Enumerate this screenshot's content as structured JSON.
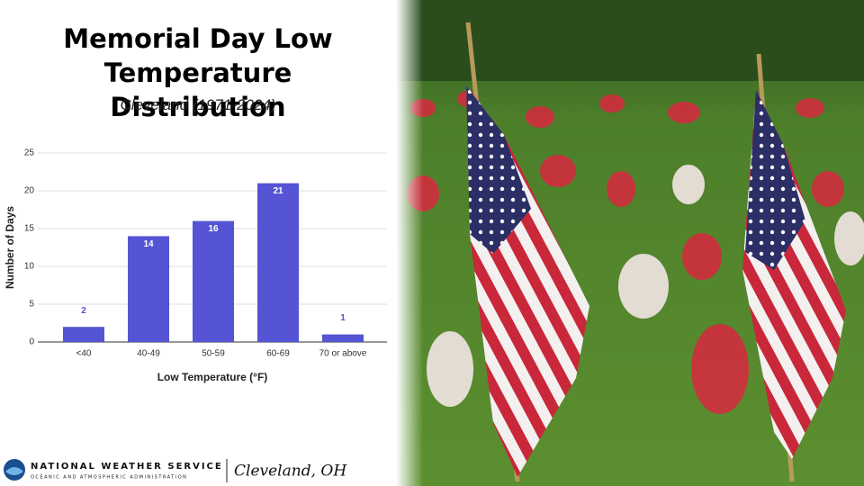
{
  "chart_data": {
    "type": "bar",
    "title": "Memorial Day Low Temperature Distribution",
    "subtitle": "Cleveland (1971-2024)",
    "x_label": "Low Temperature (°F)",
    "y_label": "Number of Days",
    "categories": [
      "<40",
      "40-49",
      "50-59",
      "60-69",
      "70 or above"
    ],
    "values": [
      2,
      14,
      16,
      21,
      1
    ],
    "color": "#5454d4",
    "ylim": [
      0,
      25
    ],
    "yticks": [
      0,
      5,
      10,
      15,
      20,
      25
    ],
    "grid": true
  },
  "footer": {
    "agency": "NATIONAL WEATHER SERVICE",
    "agency_sub": "OCEANIC AND ATMOSPHERIC ADMINISTRATION",
    "office": "Cleveland, OH"
  }
}
